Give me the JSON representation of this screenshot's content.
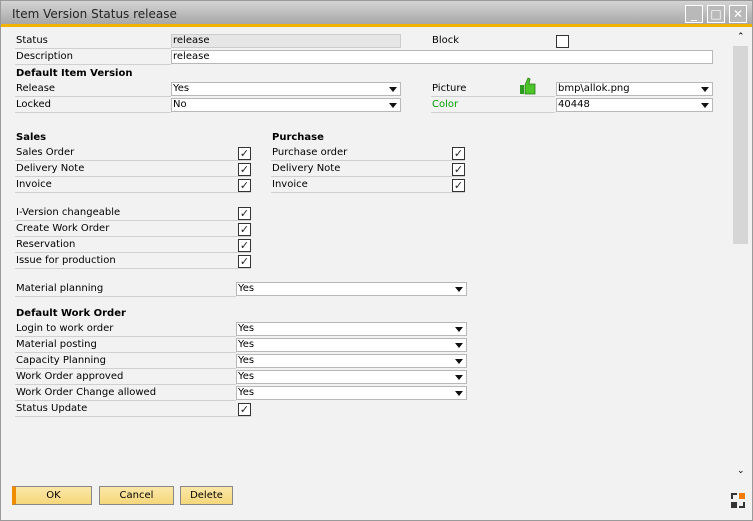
{
  "window": {
    "title": "Item Version Status release",
    "minimize": "_",
    "maximize": "□",
    "close": "✕"
  },
  "header": {
    "status": {
      "label": "Status",
      "value": "release"
    },
    "block": {
      "label": "Block",
      "checked": false
    },
    "description": {
      "label": "Description",
      "value": "release"
    },
    "default_item_version": "Default Item Version",
    "release": {
      "label": "Release",
      "value": "Yes"
    },
    "locked": {
      "label": "Locked",
      "value": "No"
    },
    "picture": {
      "label": "Picture",
      "value": "bmp\\allok.png",
      "icon": "thumbs-up-icon"
    },
    "color": {
      "label": "Color",
      "value": "40448",
      "label_color": "#009e00"
    }
  },
  "sales": {
    "title": "Sales",
    "items": [
      {
        "label": "Sales Order",
        "checked": true
      },
      {
        "label": "Delivery Note",
        "checked": true
      },
      {
        "label": "Invoice",
        "checked": true
      }
    ]
  },
  "purchase": {
    "title": "Purchase",
    "items": [
      {
        "label": "Purchase order",
        "checked": true
      },
      {
        "label": "Delivery Note",
        "checked": true
      },
      {
        "label": "Invoice",
        "checked": true
      }
    ]
  },
  "options": [
    {
      "label": "I-Version changeable",
      "checked": true
    },
    {
      "label": "Create Work Order",
      "checked": true
    },
    {
      "label": "Reservation",
      "checked": true
    },
    {
      "label": "Issue for production",
      "checked": true
    }
  ],
  "material_planning": {
    "label": "Material planning",
    "value": "Yes"
  },
  "work_order": {
    "title": "Default Work Order",
    "items": [
      {
        "label": "Login to work order",
        "value": "Yes"
      },
      {
        "label": "Material posting",
        "value": "Yes"
      },
      {
        "label": "Capacity Planning",
        "value": "Yes"
      },
      {
        "label": "Work Order approved",
        "value": "Yes"
      },
      {
        "label": "Work Order Change allowed",
        "value": "Yes"
      }
    ],
    "status_update": {
      "label": "Status Update",
      "checked": true
    }
  },
  "buttons": {
    "ok": "OK",
    "cancel": "Cancel",
    "delete": "Delete"
  },
  "colors": {
    "accent": "#f0b400",
    "button": "#f5d77a"
  }
}
